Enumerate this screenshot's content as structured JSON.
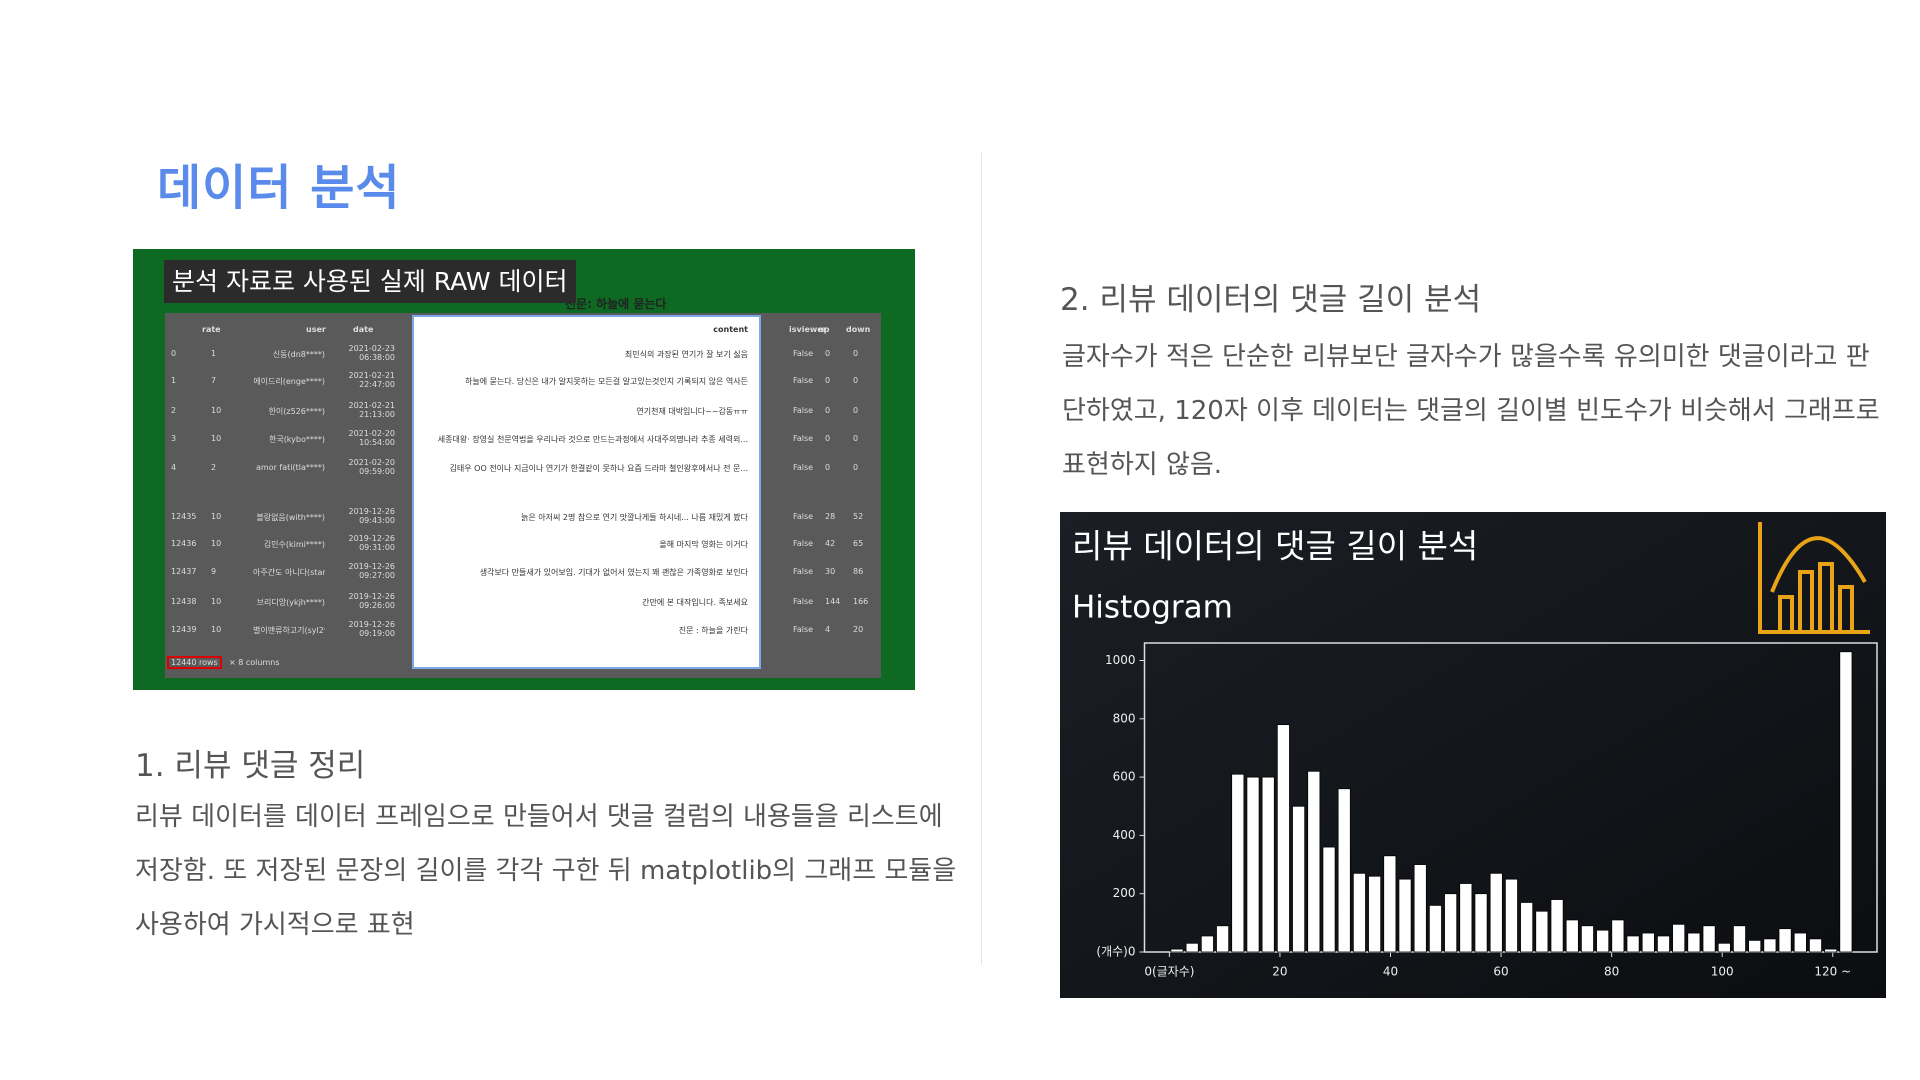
{
  "header": {
    "title": "데이터 분석"
  },
  "left": {
    "image": {
      "caption": "분석 자료로 사용된 실제 RAW 데이터",
      "movie_title": "천문: 하늘에 묻는다",
      "columns": [
        "rate",
        "user",
        "date",
        "content",
        "isviewer",
        "up",
        "down"
      ],
      "rows": [
        [
          "0",
          "1",
          "신동(dn8****)",
          "2021-02-23 06:38:00",
          "최민식의 과장된 연기가 잘 보기 싫음",
          "False",
          "0",
          "0"
        ],
        [
          "1",
          "7",
          "에이드리(enge****)",
          "2021-02-21 22:47:00",
          "하늘에 묻는다. 당신은 내가 알지못하는 모든걸 알고있는것인지 기록되지 않은 역사든",
          "False",
          "0",
          "0"
        ],
        [
          "2",
          "10",
          "한이(z526****)",
          "2021-02-21 21:13:00",
          "연기천재 대박입니다~~감동ㅠㅠ",
          "False",
          "0",
          "0"
        ],
        [
          "3",
          "10",
          "한국(kybo****)",
          "2021-02-20 10:54:00",
          "세종대왕· 장영실 천문역법을 우리나라 것으로 만드는과정에서 사대주의명나라 추종 세력외...",
          "False",
          "0",
          "0"
        ],
        [
          "4",
          "2",
          "amor fati(tla****)",
          "2021-02-20 09:59:00",
          "김태우 OO 전이나 지금이나 연기가 한결같이 못하나 요즘 드라마 철인왕후에서나 전 문...",
          "False",
          "0",
          "0"
        ],
        [
          "12435",
          "10",
          "볼랑없음(with****)",
          "2019-12-26 09:43:00",
          "늙은 아저씨 2명 참으로 연기 맛깔나게들 하시네... 나름 재밌게 봤다",
          "False",
          "28",
          "52"
        ],
        [
          "12436",
          "10",
          "김민수(kimi****)",
          "2019-12-26 09:31:00",
          "올해 마지막 영화는 이거다",
          "False",
          "42",
          "65"
        ],
        [
          "12437",
          "9",
          "아주간도 아니다(stan****)",
          "2019-12-26 09:27:00",
          "생각보다 만들새가 있어보임. 기대가 없어서 였는지 꽤 괜찮은 가족영화로 보인다",
          "False",
          "30",
          "86"
        ],
        [
          "12438",
          "10",
          "브리디앙(ykjh****)",
          "2019-12-26 09:26:00",
          "간만에 본 대작입니다. 족보세요",
          "False",
          "144",
          "166"
        ],
        [
          "12439",
          "10",
          "별이맨류하고기(syl2****)",
          "2019-12-26 09:19:00",
          "진문 : 하늘을 가린다",
          "False",
          "4",
          "20"
        ]
      ],
      "rows_count": "12440 rows",
      "columns_count": "× 8 columns"
    },
    "heading": "1. 리뷰 댓글 정리",
    "body": "리뷰 데이터를 데이터 프레임으로 만들어서 댓글 컬럼의 내용들을 리스트에 저장함. 또 저장된 문장의 길이를 각각 구한 뒤 matplotlib의 그래프 모듈을 사용하여 가시적으로 표현"
  },
  "right": {
    "heading": "2. 리뷰 데이터의 댓글 길이 분석",
    "body": " 글자수가 적은 단순한 리뷰보단 글자수가 많을수록 유의미한 댓글이라고 판단하였고, 120자 이후 데이터는 댓글의 길이별 빈도수가 비슷해서 그래프로 표현하지 않음.",
    "histogram": {
      "type": "histogram",
      "title": "리뷰 데이터의 댓글 길이 분석",
      "subtitle": "Histogram",
      "color": "#ffffff",
      "bins": [
        0,
        2.75,
        5.5,
        8.25,
        11,
        13.75,
        16.5,
        19.25,
        22,
        24.75,
        27.5,
        30.25,
        33,
        35.75,
        38.5,
        41.25,
        44,
        46.75,
        49.5,
        52.25,
        55,
        57.75,
        60.5,
        63.25,
        66,
        68.75,
        71.5,
        74.25,
        77,
        79.75,
        82.5,
        85.25,
        88,
        90.75,
        93.5,
        96.25,
        99,
        101.75,
        104.5,
        107.25,
        110,
        112.75,
        115.5,
        118.25,
        121,
        123.75
      ],
      "values": [
        10,
        30,
        55,
        90,
        610,
        600,
        600,
        780,
        500,
        620,
        360,
        560,
        270,
        260,
        330,
        250,
        300,
        160,
        200,
        235,
        200,
        270,
        250,
        170,
        140,
        180,
        110,
        90,
        75,
        110,
        55,
        65,
        55,
        95,
        65,
        90,
        30,
        90,
        40,
        45,
        80,
        65,
        45,
        10,
        1030
      ],
      "xlim": [
        -4.5,
        128
      ],
      "ylim": [
        0,
        1060
      ],
      "xticks": [
        {
          "value": 0,
          "label": "0(글자수)"
        },
        20,
        40,
        60,
        80,
        100,
        {
          "value": 120,
          "label": "120 ~"
        }
      ],
      "yticks": [
        {
          "value": 0,
          "label": "(개수)0"
        },
        200,
        400,
        600,
        800,
        1000
      ]
    }
  }
}
